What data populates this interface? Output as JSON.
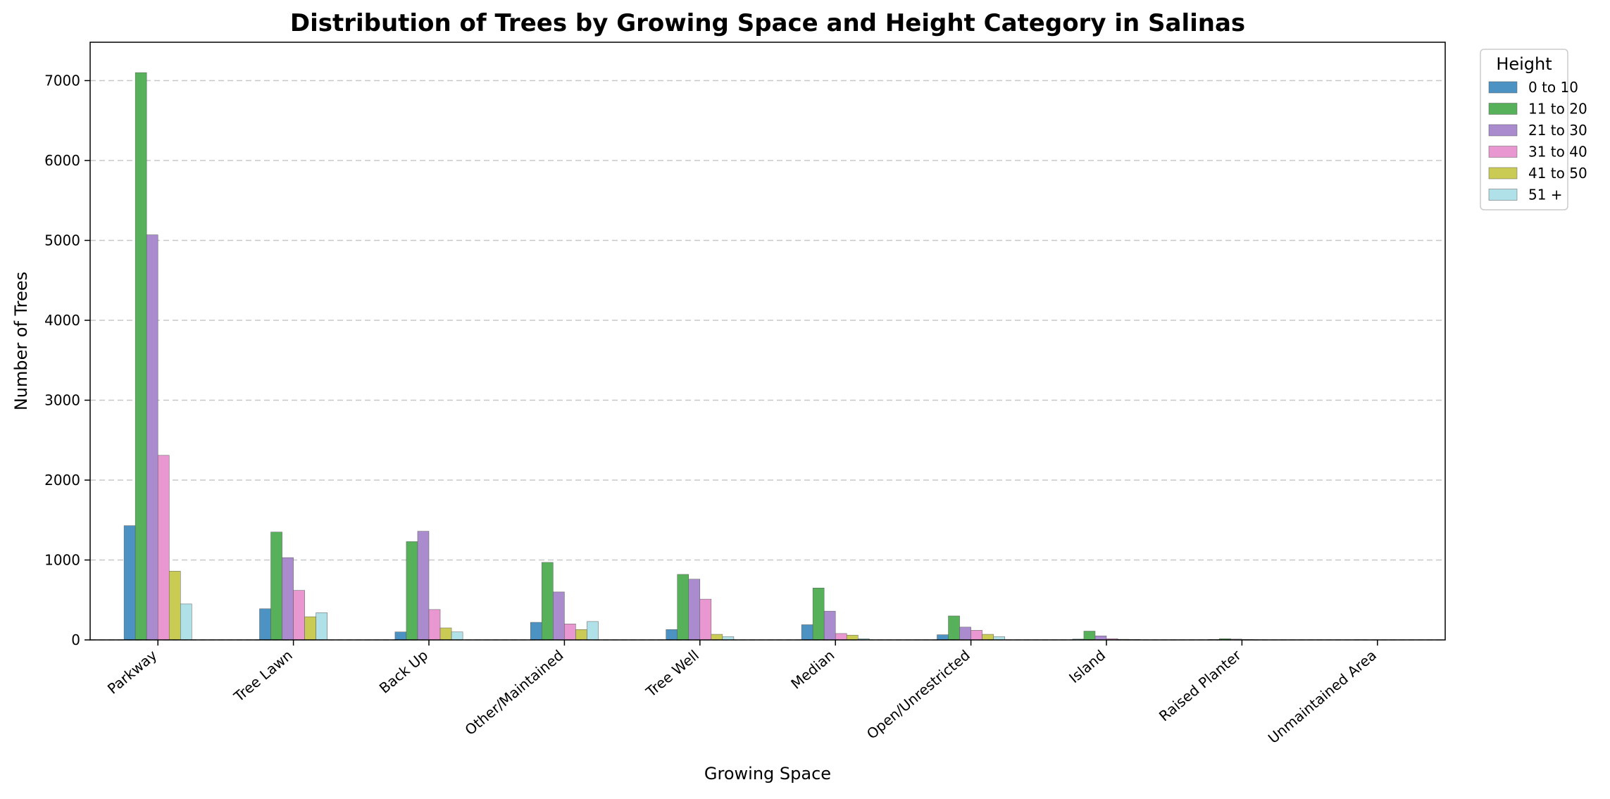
{
  "chart_data": {
    "type": "bar",
    "title": "Distribution of Trees by Growing Space and Height Category in Salinas",
    "xlabel": "Growing Space",
    "ylabel": "Number of Trees",
    "ylim": [
      0,
      7480
    ],
    "yticks": [
      0,
      1000,
      2000,
      3000,
      4000,
      5000,
      6000,
      7000
    ],
    "grid": "y-dashed",
    "legend_title": "Height",
    "legend_position": "outside-top-right",
    "categories": [
      "Parkway",
      "Tree Lawn",
      "Back Up",
      "Other/Maintained",
      "Tree Well",
      "Median",
      "Open/Unrestricted",
      "Island",
      "Raised Planter",
      "Unmaintained Area"
    ],
    "series": [
      {
        "name": "0 to 10",
        "color": "#4c93c3",
        "values": [
          1430,
          390,
          100,
          220,
          130,
          190,
          65,
          10,
          5,
          2
        ]
      },
      {
        "name": "11 to 20",
        "color": "#57b15a",
        "values": [
          7100,
          1350,
          1230,
          970,
          820,
          650,
          300,
          110,
          15,
          3
        ]
      },
      {
        "name": "21 to 30",
        "color": "#a98bce",
        "values": [
          5070,
          1030,
          1360,
          600,
          760,
          360,
          160,
          50,
          10,
          2
        ]
      },
      {
        "name": "31 to 40",
        "color": "#e897d0",
        "values": [
          2310,
          620,
          380,
          200,
          510,
          80,
          120,
          15,
          5,
          1
        ]
      },
      {
        "name": "41 to 50",
        "color": "#cacb55",
        "values": [
          860,
          290,
          150,
          130,
          70,
          60,
          70,
          8,
          3,
          1
        ]
      },
      {
        "name": "51 +",
        "color": "#b0e1e8",
        "values": [
          450,
          340,
          100,
          230,
          40,
          15,
          40,
          5,
          2,
          1
        ]
      }
    ]
  }
}
